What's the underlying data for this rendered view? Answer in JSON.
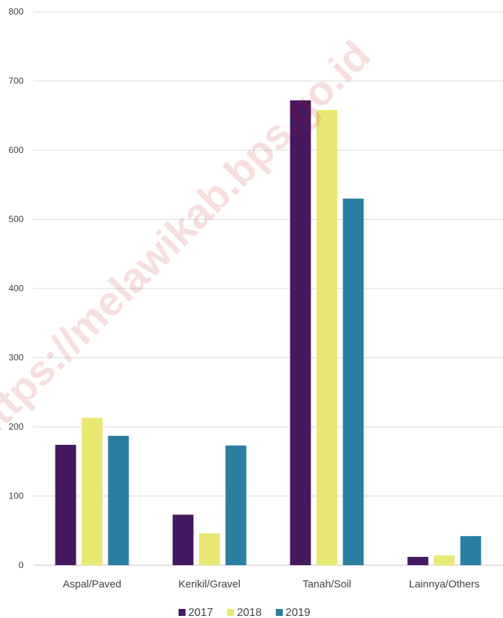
{
  "watermark": "https://melawikab.bps.go.id",
  "chart_data": {
    "type": "bar",
    "title": "",
    "xlabel": "",
    "ylabel": "",
    "ylim": [
      0,
      800
    ],
    "yticks": [
      0,
      100,
      200,
      300,
      400,
      500,
      600,
      700,
      800
    ],
    "grid": true,
    "legend_position": "bottom",
    "categories": [
      "Aspal/Paved",
      "Kerikil/Gravel",
      "Tanah/Soil",
      "Lainnya/Others"
    ],
    "series": [
      {
        "name": "2017",
        "color": "#461860",
        "values": [
          174,
          73,
          672,
          12
        ]
      },
      {
        "name": "2018",
        "color": "#e8e873",
        "values": [
          213,
          46,
          658,
          14
        ]
      },
      {
        "name": "2019",
        "color": "#2a7fa0",
        "values": [
          187,
          173,
          530,
          42
        ]
      }
    ]
  }
}
